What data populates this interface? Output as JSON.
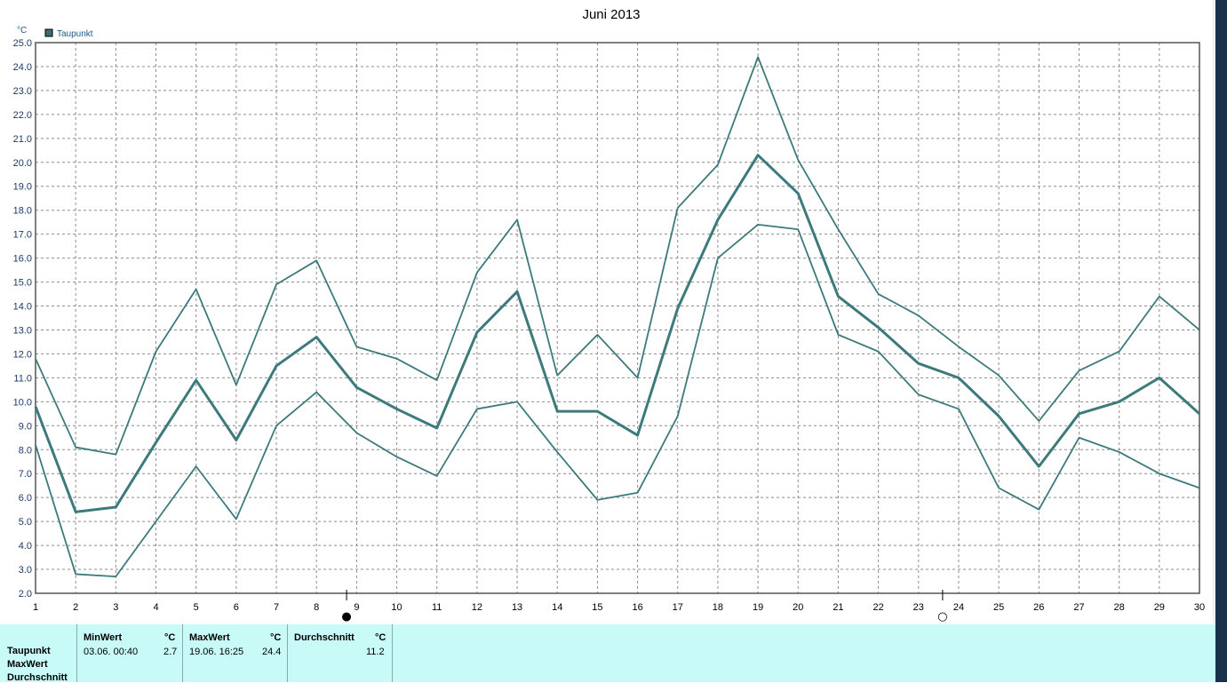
{
  "chart_data": {
    "type": "line",
    "title": "Juni 2013",
    "yunit": "°C",
    "legend": "Taupunkt",
    "legend_placement": "top-left",
    "grid": true,
    "ylim": [
      2.0,
      25.0
    ],
    "yticks": [
      "2.0",
      "3.0",
      "4.0",
      "5.0",
      "6.0",
      "7.0",
      "8.0",
      "9.0",
      "10.0",
      "11.0",
      "12.0",
      "13.0",
      "14.0",
      "15.0",
      "16.0",
      "17.0",
      "18.0",
      "19.0",
      "20.0",
      "21.0",
      "22.0",
      "23.0",
      "24.0",
      "25.0"
    ],
    "x": [
      1,
      2,
      3,
      4,
      5,
      6,
      7,
      8,
      9,
      10,
      11,
      12,
      13,
      14,
      15,
      16,
      17,
      18,
      19,
      20,
      21,
      22,
      23,
      24,
      25,
      26,
      27,
      28,
      29,
      30
    ],
    "xlabels": [
      "1",
      "2",
      "3",
      "4",
      "5",
      "6",
      "7",
      "8",
      "9",
      "10",
      "11",
      "12",
      "13",
      "14",
      "15",
      "16",
      "17",
      "18",
      "19",
      "20",
      "21",
      "22",
      "23",
      "24",
      "25",
      "26",
      "27",
      "28",
      "29",
      "30"
    ],
    "color": "#3d7a7c",
    "series": [
      {
        "role": "max",
        "values": [
          11.8,
          8.1,
          7.8,
          12.1,
          14.7,
          10.7,
          14.9,
          15.9,
          12.3,
          11.8,
          10.9,
          15.4,
          17.6,
          11.1,
          12.8,
          11.0,
          18.1,
          19.9,
          24.4,
          20.1,
          17.2,
          14.5,
          13.6,
          12.3,
          11.1,
          9.2,
          11.3,
          12.1,
          14.4,
          13.0
        ]
      },
      {
        "role": "mean",
        "values": [
          9.8,
          5.4,
          5.6,
          8.3,
          10.9,
          8.4,
          11.5,
          12.7,
          10.6,
          9.7,
          8.9,
          12.9,
          14.6,
          9.6,
          9.6,
          8.6,
          13.9,
          17.6,
          20.3,
          18.7,
          14.4,
          13.1,
          11.6,
          11.0,
          9.4,
          7.3,
          9.5,
          10.0,
          11.0,
          9.5
        ]
      },
      {
        "role": "min",
        "values": [
          8.2,
          2.8,
          2.7,
          5.0,
          7.3,
          5.1,
          9.0,
          10.4,
          8.7,
          7.7,
          6.9,
          9.7,
          10.0,
          7.9,
          5.9,
          6.2,
          9.4,
          16.0,
          17.4,
          17.2,
          12.8,
          12.1,
          10.3,
          9.7,
          6.4,
          5.5,
          8.5,
          7.9,
          7.0,
          6.4
        ]
      }
    ],
    "moon_markers": [
      {
        "day": 8.75,
        "symbol": "●"
      },
      {
        "day": 23.6,
        "symbol": "○"
      }
    ]
  },
  "stats_panel": {
    "row_labels": [
      "Taupunkt",
      "MaxWert",
      "Durchschnitt"
    ],
    "min": {
      "header": "MinWert",
      "unit": "°C",
      "when": "03.06.  00:40",
      "value": "2.7"
    },
    "max": {
      "header": "MaxWert",
      "unit": "°C",
      "when": "19.06.  16:25",
      "value": "24.4"
    },
    "avg": {
      "header": "Durchschnitt",
      "unit": "°C",
      "value": "11.2"
    }
  }
}
